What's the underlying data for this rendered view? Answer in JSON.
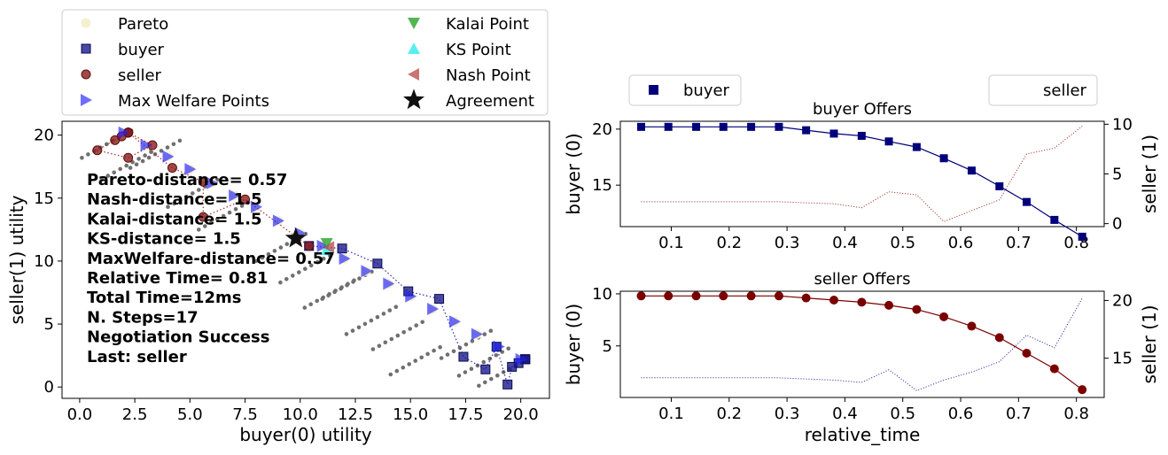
{
  "chart_data": [
    {
      "type": "scatter",
      "xlabel": "buyer(0) utility",
      "ylabel": "seller(1) utility",
      "xlim": [
        -0.8,
        21.3
      ],
      "ylim": [
        -0.9,
        21.1
      ],
      "xticks": [
        "0.0",
        "2.5",
        "5.0",
        "7.5",
        "10.0",
        "12.5",
        "15.0",
        "17.5",
        "20.0"
      ],
      "yticks": [
        "0",
        "5",
        "10",
        "15",
        "20"
      ],
      "grid": false,
      "legend": {
        "placement": "top",
        "entries": [
          "Pareto",
          "buyer",
          "seller",
          "Max Welfare Points",
          "Kalai Point",
          "KS Point",
          "Nash Point",
          "Agreement"
        ]
      },
      "annotation": [
        "Pareto-distance= 0.57",
        "Nash-distance=  1.5",
        "Kalai-distance=  1.5",
        "KS-distance=  1.5",
        "MaxWelfare-distance= 0.57",
        "Relative Time= 0.81",
        "Total Time=12ms",
        "N. Steps=17",
        "Negotiation Success",
        "Last: seller"
      ],
      "series": [
        {
          "name": "Pareto",
          "x": [
            2.0,
            3.0,
            4.0,
            5.0,
            6.0,
            7.0,
            8.0,
            9.0,
            10.0,
            11.0,
            12.0,
            13.0,
            14.0,
            15.0,
            16.0,
            17.0,
            18.0,
            19.0,
            20.0
          ],
          "y": [
            20.2,
            19.2,
            18.3,
            17.3,
            16.2,
            15.2,
            14.3,
            13.2,
            12.2,
            11.2,
            10.2,
            9.2,
            8.2,
            7.2,
            6.2,
            5.2,
            4.2,
            3.2,
            2.2
          ]
        },
        {
          "name": "buyer",
          "x": [
            20.2,
            20.2,
            20.2,
            20.2,
            20.2,
            20.2,
            19.9,
            19.6,
            19.4,
            18.9,
            18.4,
            17.4,
            16.3,
            14.9,
            13.5,
            11.9,
            10.4
          ],
          "y": [
            2.2,
            2.2,
            2.2,
            2.2,
            2.2,
            2.2,
            1.9,
            1.6,
            0.2,
            3.2,
            1.4,
            2.4,
            7.0,
            7.6,
            9.8,
            11.0,
            11.2
          ]
        },
        {
          "name": "seller",
          "x": [
            2.2,
            2.2,
            2.2,
            2.2,
            2.2,
            2.2,
            1.9,
            1.6,
            0.8,
            2.2,
            3.3,
            2.2,
            4.2,
            5.6,
            5.6,
            7.5,
            10.4
          ],
          "y": [
            20.2,
            20.2,
            20.2,
            20.2,
            20.2,
            20.2,
            19.9,
            19.6,
            18.8,
            18.2,
            19.2,
            20.2,
            17.4,
            16.3,
            13.5,
            14.9,
            11.2
          ]
        },
        {
          "name": "Max Welfare Points",
          "x": [
            2.0,
            3.0,
            4.0,
            5.0,
            6.0,
            7.0,
            8.0,
            9.0,
            10.0,
            11.0,
            12.0,
            13.0,
            14.0,
            15.0,
            16.0,
            17.0,
            18.0,
            19.0,
            20.0
          ],
          "y": [
            20.2,
            19.2,
            18.3,
            17.3,
            16.2,
            15.2,
            14.3,
            13.2,
            12.2,
            11.2,
            10.2,
            9.2,
            8.2,
            7.2,
            6.2,
            5.2,
            4.2,
            3.2,
            2.2
          ]
        },
        {
          "name": "Kalai Point",
          "x": [
            11.2
          ],
          "y": [
            11.4
          ]
        },
        {
          "name": "KS Point",
          "x": [
            11.2
          ],
          "y": [
            10.9
          ]
        },
        {
          "name": "Nash Point",
          "x": [
            11.3
          ],
          "y": [
            11.1
          ]
        },
        {
          "name": "Agreement",
          "x": [
            9.8
          ],
          "y": [
            11.8
          ]
        }
      ]
    },
    {
      "type": "line",
      "title": "buyer Offers",
      "xlabel": "",
      "ylabel": "buyer (0)",
      "ylabel_right": "seller (1)",
      "xlim": [
        0.012,
        0.848
      ],
      "ylim": [
        11.3,
        20.7
      ],
      "ylim_right": [
        -0.3,
        10.3
      ],
      "xticks": [
        "0.1",
        "0.2",
        "0.3",
        "0.4",
        "0.5",
        "0.6",
        "0.7",
        "0.8"
      ],
      "yticks": [
        "15",
        "20"
      ],
      "yticks_right": [
        "0",
        "5",
        "10"
      ],
      "legend": {
        "left": "buyer",
        "right": "seller"
      },
      "x": [
        0.048,
        0.095,
        0.143,
        0.19,
        0.238,
        0.286,
        0.333,
        0.381,
        0.429,
        0.476,
        0.524,
        0.571,
        0.619,
        0.667,
        0.714,
        0.762,
        0.81
      ],
      "series": [
        {
          "name": "buyer",
          "axis": "left",
          "values": [
            20.2,
            20.2,
            20.2,
            20.2,
            20.2,
            20.2,
            19.9,
            19.6,
            19.4,
            18.9,
            18.4,
            17.4,
            16.3,
            14.9,
            13.5,
            11.9,
            10.4
          ]
        },
        {
          "name": "seller",
          "axis": "right",
          "values": [
            2.2,
            2.2,
            2.2,
            2.2,
            2.2,
            2.2,
            2.1,
            2.0,
            1.6,
            3.2,
            2.9,
            0.2,
            1.3,
            2.4,
            7.0,
            7.6,
            9.8
          ]
        }
      ]
    },
    {
      "type": "line",
      "title": "seller Offers",
      "xlabel": "relative_time",
      "ylabel": "buyer (0)",
      "ylabel_right": "seller (1)",
      "xlim": [
        0.012,
        0.848
      ],
      "ylim": [
        0.05,
        10.25
      ],
      "ylim_right": [
        11.6,
        20.8
      ],
      "xticks": [
        "0.1",
        "0.2",
        "0.3",
        "0.4",
        "0.5",
        "0.6",
        "0.7",
        "0.8"
      ],
      "yticks": [
        "5",
        "10"
      ],
      "yticks_right": [
        "15",
        "20"
      ],
      "x": [
        0.048,
        0.095,
        0.143,
        0.19,
        0.238,
        0.286,
        0.333,
        0.381,
        0.429,
        0.476,
        0.524,
        0.571,
        0.619,
        0.667,
        0.714,
        0.762,
        0.81
      ],
      "series": [
        {
          "name": "seller",
          "axis": "left",
          "values": [
            9.8,
            9.8,
            9.8,
            9.8,
            9.8,
            9.8,
            9.6,
            9.4,
            9.2,
            8.9,
            8.5,
            7.8,
            6.9,
            5.8,
            4.3,
            2.8,
            0.8
          ]
        },
        {
          "name": "buyer",
          "axis": "right",
          "values": [
            13.3,
            13.3,
            13.3,
            13.3,
            13.3,
            13.3,
            13.2,
            13.1,
            12.9,
            14.0,
            12.2,
            13.1,
            13.8,
            14.7,
            17.0,
            15.9,
            20.2
          ]
        }
      ]
    }
  ]
}
